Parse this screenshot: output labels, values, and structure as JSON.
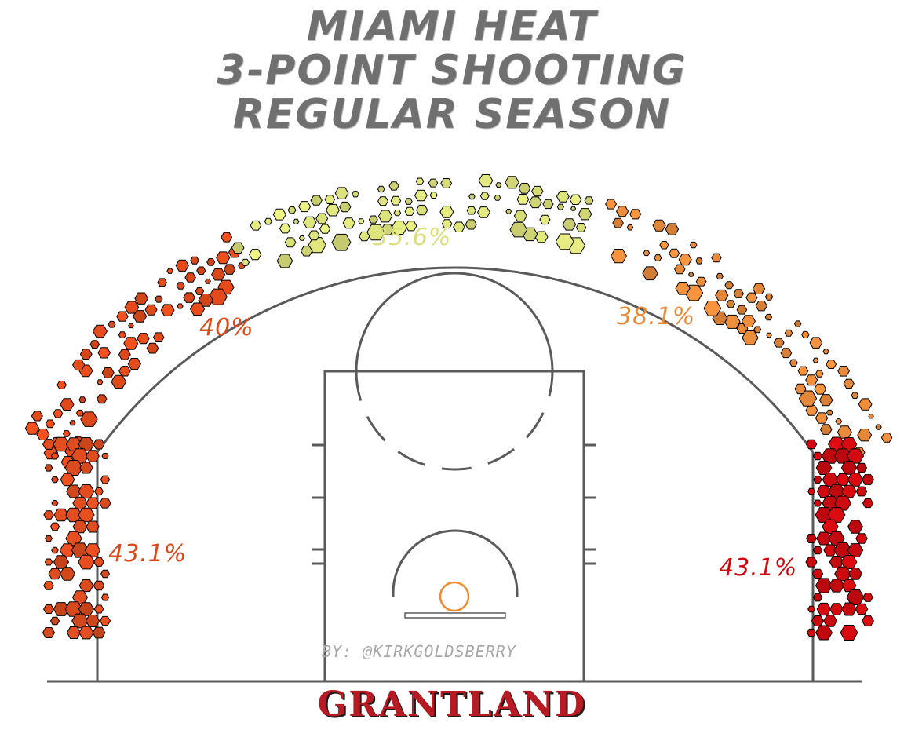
{
  "title_lines": [
    "MIAMI HEAT",
    "3-POINT SHOOTING",
    "REGULAR SEASON"
  ],
  "byline": "BY: @KIRKGOLDSBERRY",
  "brand": "GRANTLAND",
  "chart_data": {
    "type": "heatmap",
    "subject": "Miami Heat 3-point shooting, regular season",
    "zones": [
      {
        "zone": "left-corner",
        "pct_label": "43.1%",
        "color": "#d84a1e",
        "pct": 43.1
      },
      {
        "zone": "left-wing",
        "pct_label": "40%",
        "color": "#e04a1a",
        "pct": 40.0
      },
      {
        "zone": "top-of-key",
        "pct_label": "35.6%",
        "color": "#d9df7a",
        "pct": 35.6
      },
      {
        "zone": "right-wing",
        "pct_label": "38.1%",
        "color": "#e78a3a",
        "pct": 38.1
      },
      {
        "zone": "right-corner",
        "pct_label": "43.1%",
        "color": "#cc0a10",
        "pct": 43.1
      }
    ],
    "colors": {
      "court_lines": "#5a5a5a",
      "rim": "#f08a2a",
      "brand": "#b81a24",
      "title": "#707070"
    }
  }
}
